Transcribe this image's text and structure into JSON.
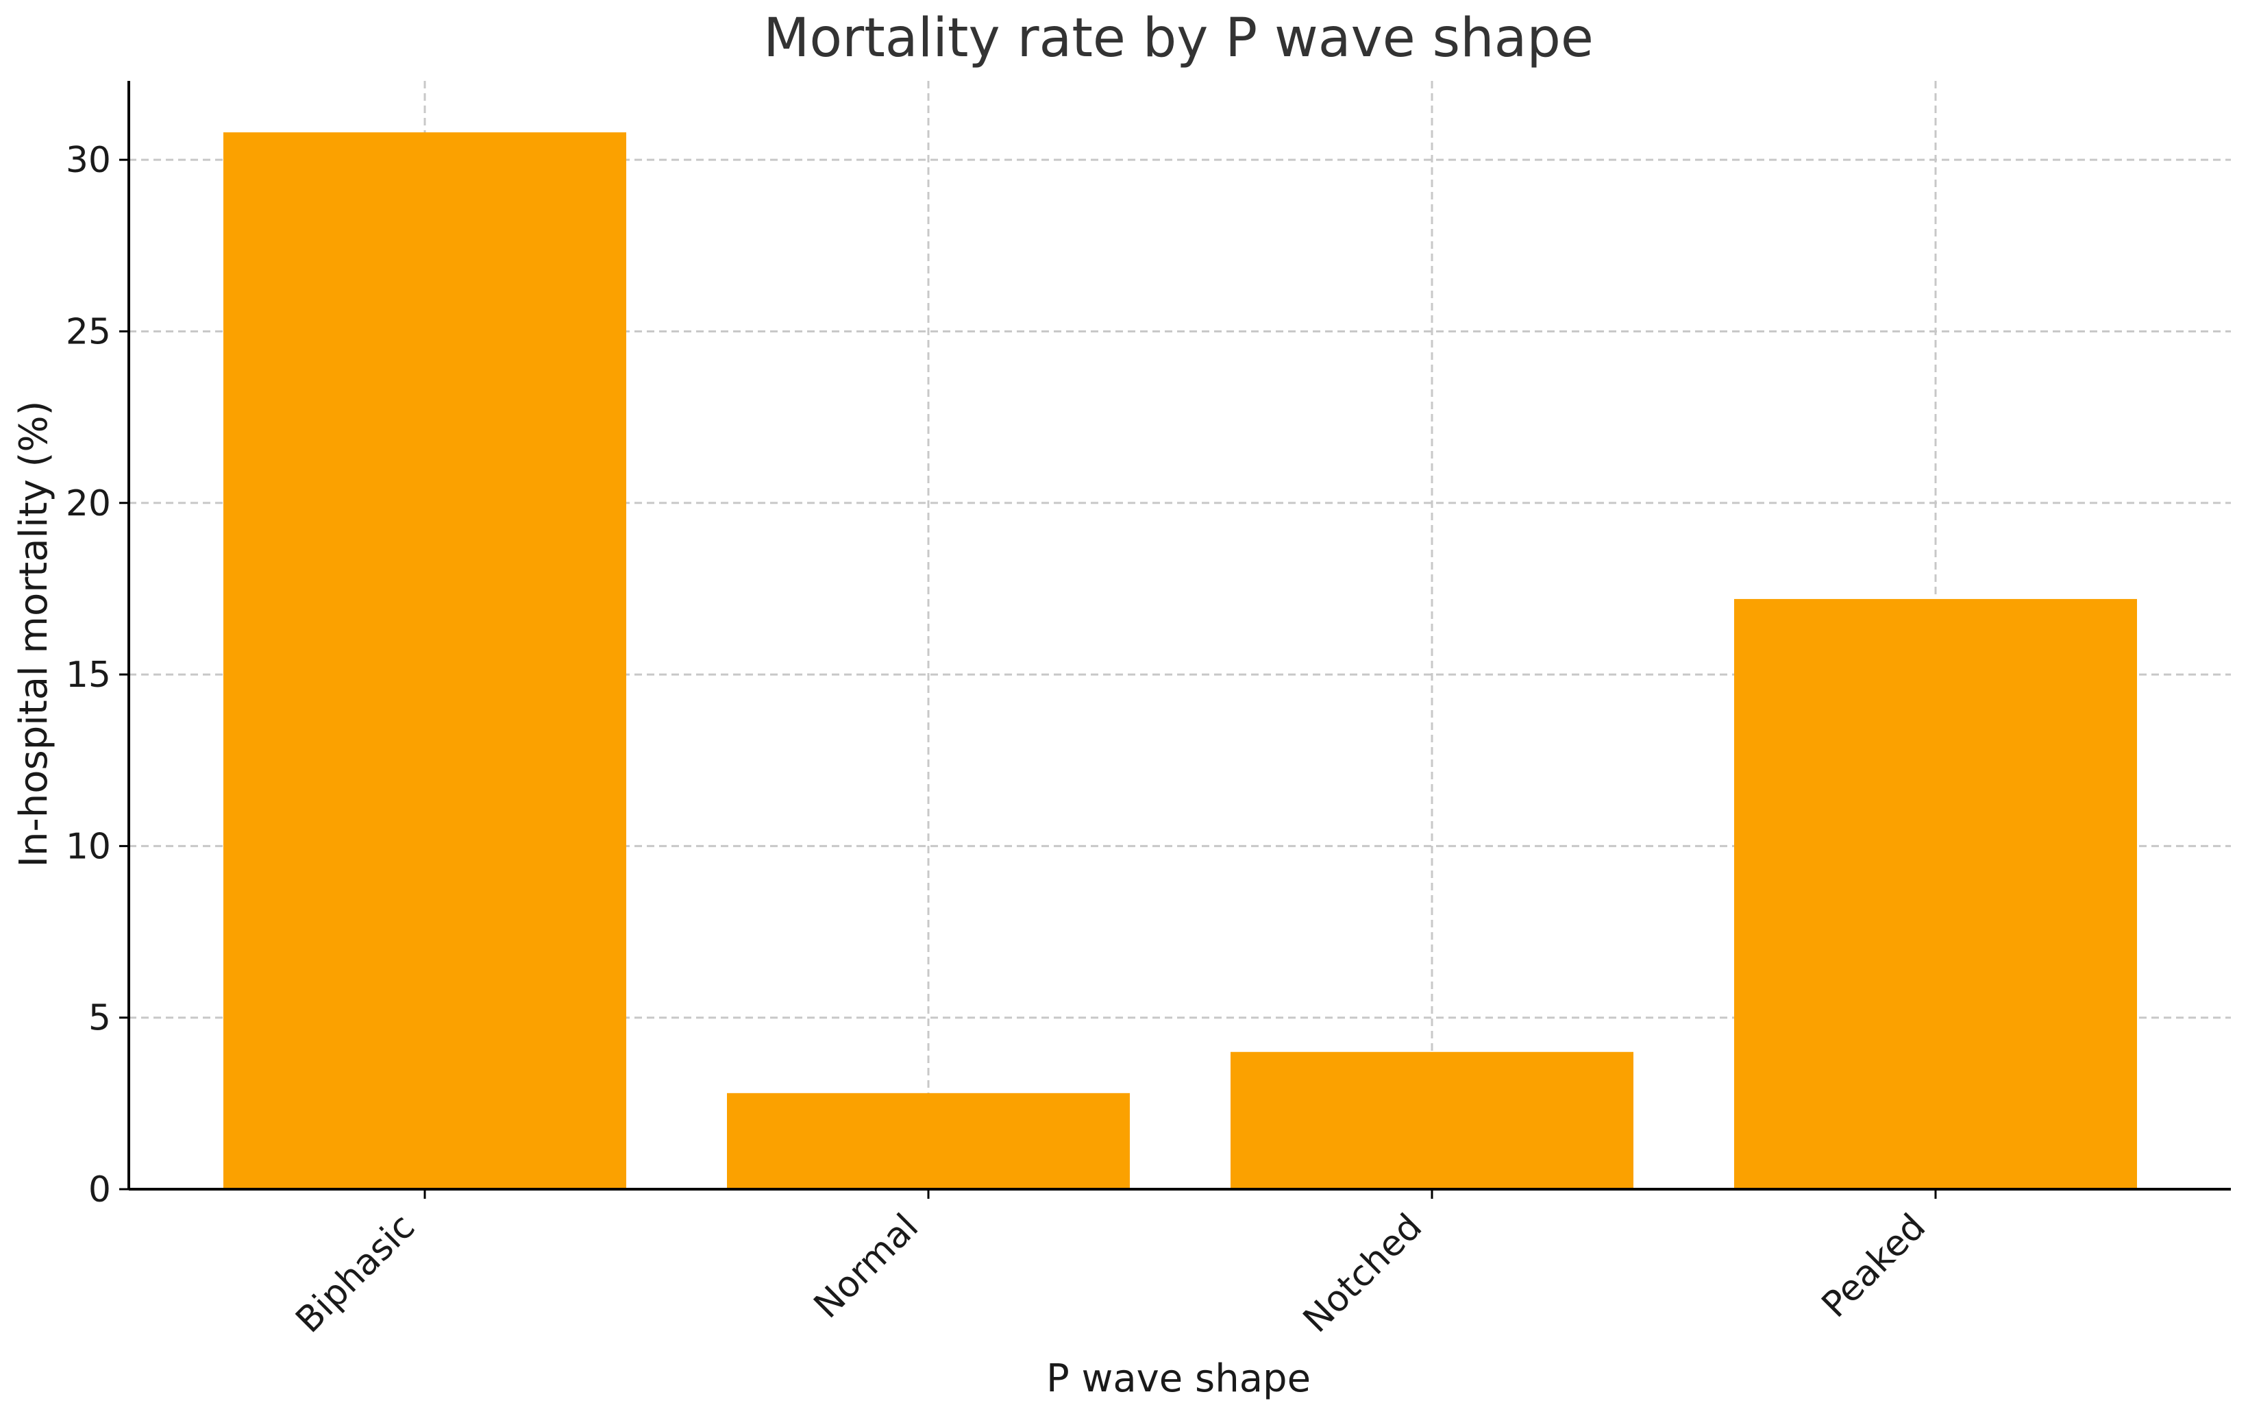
{
  "chart_data": {
    "type": "bar",
    "title": "Mortality rate by P wave shape",
    "xlabel": "P wave shape",
    "ylabel": "In-hospital mortality (%)",
    "categories": [
      "Biphasic",
      "Normal",
      "Notched",
      "Peaked"
    ],
    "values": [
      30.8,
      2.8,
      4.0,
      17.2
    ],
    "ylim": [
      0,
      32.3
    ],
    "yticks": [
      0,
      5,
      10,
      15,
      20,
      25,
      30
    ],
    "grid": true,
    "bar_color": "#fba100",
    "tick_label_rotation": "45 degrees"
  }
}
